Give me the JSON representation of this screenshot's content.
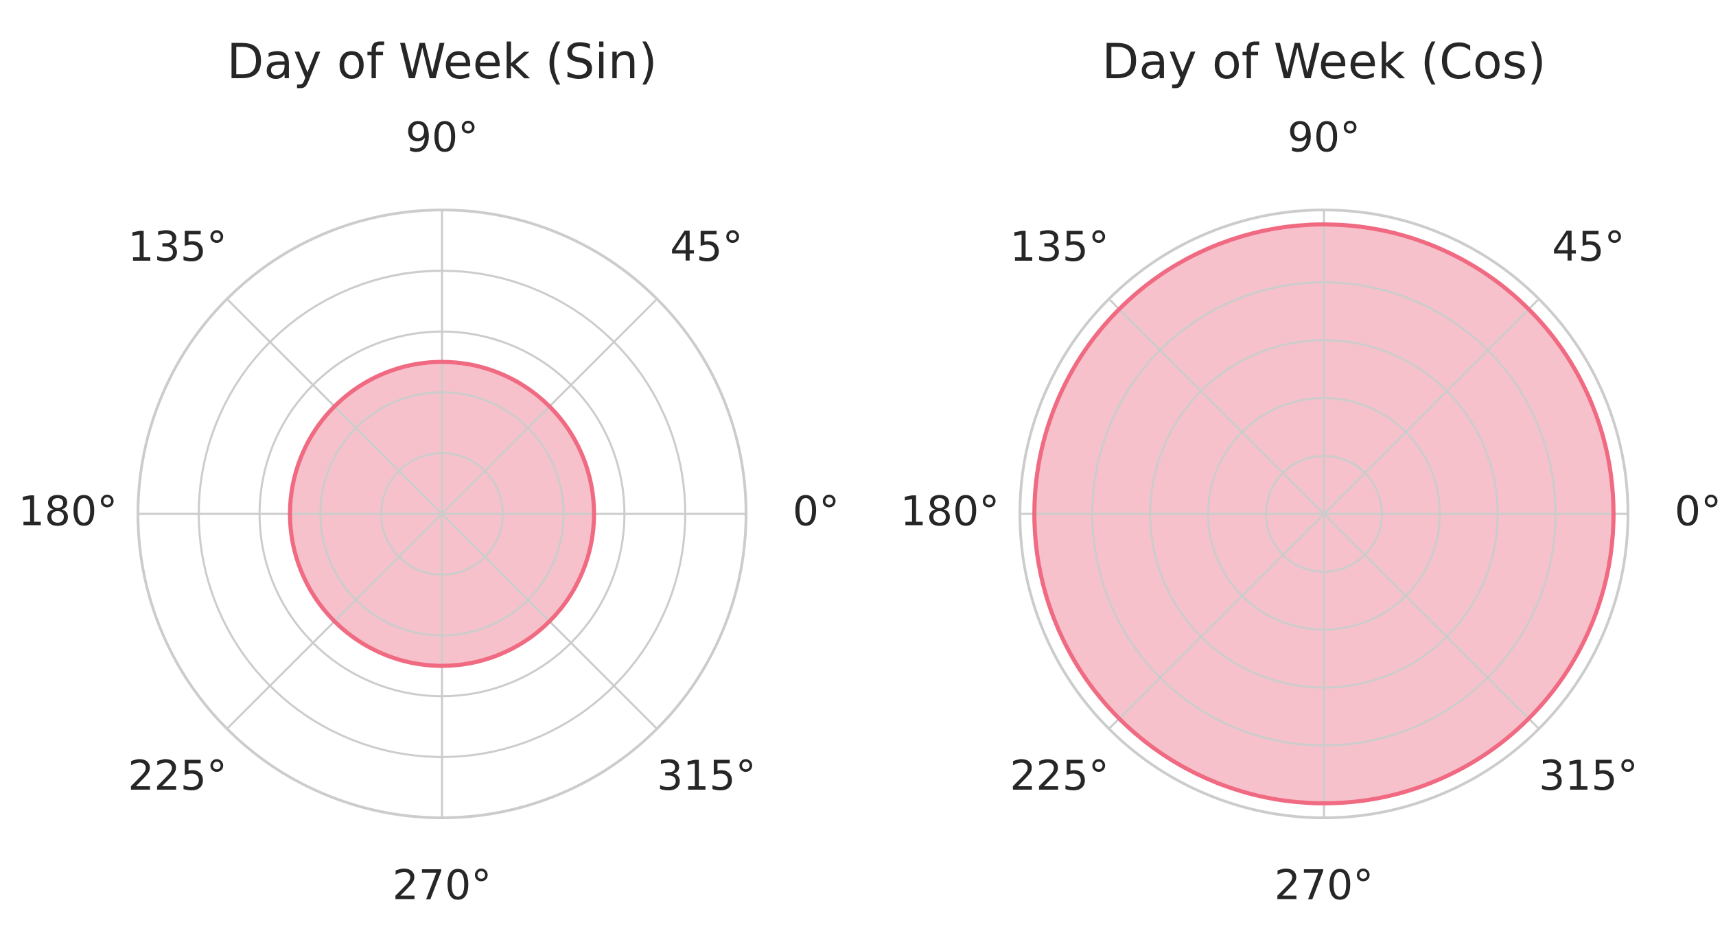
{
  "chart_data": [
    {
      "type": "polar",
      "title": "Day of Week (Sin)",
      "values": [
        0.5
      ],
      "color": "#f06a82",
      "fill": "#f7c1cc",
      "ylim": [
        0,
        1
      ],
      "yticks": [
        0.2,
        0.4,
        0.6,
        0.8,
        1.0
      ],
      "grid": true,
      "xticks": [
        {
          "value": 0,
          "label": "0°"
        },
        {
          "value": 45,
          "label": "45°"
        },
        {
          "value": 90,
          "label": "90°"
        },
        {
          "value": 135,
          "label": "135°"
        },
        {
          "value": 180,
          "label": "180°"
        },
        {
          "value": 225,
          "label": "225°"
        },
        {
          "value": 270,
          "label": "270°"
        },
        {
          "value": 315,
          "label": "315°"
        }
      ]
    },
    {
      "type": "polar",
      "title": "Day of Week (Cos)",
      "values": [
        1.0
      ],
      "color": "#f06a82",
      "fill": "#f7c1cc",
      "ylim": [
        0,
        1.05
      ],
      "yticks": [
        0.2,
        0.4,
        0.6,
        0.8,
        1.0
      ],
      "grid": true,
      "xticks": [
        {
          "value": 0,
          "label": "0°"
        },
        {
          "value": 45,
          "label": "45°"
        },
        {
          "value": 90,
          "label": "90°"
        },
        {
          "value": 135,
          "label": "135°"
        },
        {
          "value": 180,
          "label": "180°"
        },
        {
          "value": 225,
          "label": "225°"
        },
        {
          "value": 270,
          "label": "270°"
        },
        {
          "value": 315,
          "label": "315°"
        }
      ]
    }
  ]
}
